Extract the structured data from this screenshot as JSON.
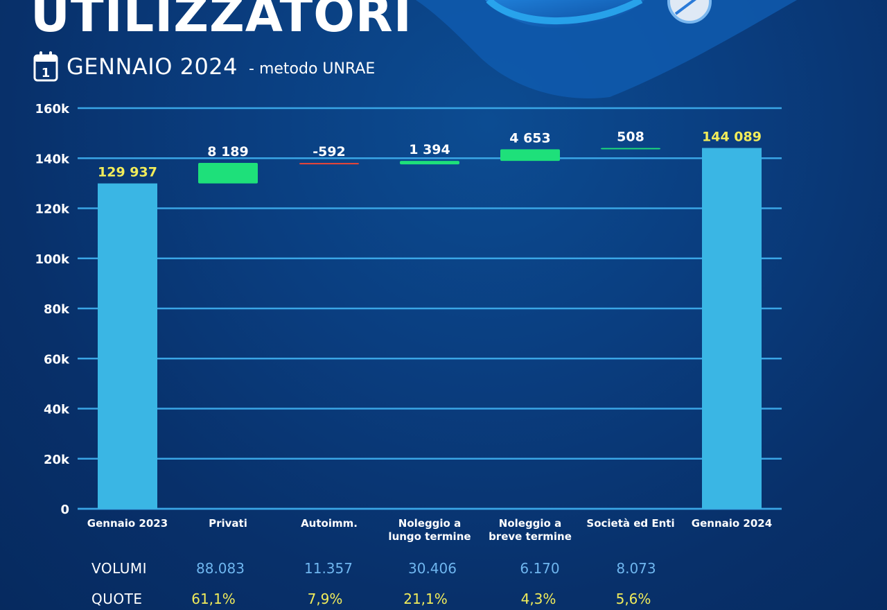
{
  "header": {
    "title": "UTILIZZATORI",
    "subtitle": "GENNAIO 2024",
    "method": "- metodo UNRAE",
    "calendar_day": "1"
  },
  "colors": {
    "background": "#0a3a7a",
    "start_end_bar": "#3ab6e4",
    "increase_bar": "#1ee07a",
    "decrease_bar": "#e0453a",
    "gridline": "#3aa6e6",
    "total_label": "#f1ec5a",
    "volume_text": "#6fb6ef",
    "share_text": "#f1ec5a"
  },
  "chart_data": {
    "type": "bar",
    "subtype": "waterfall",
    "categories": [
      "Gennaio 2023",
      "Privati",
      "Autoimm.",
      "Noleggio a lungo termine",
      "Noleggio a breve termine",
      "Società ed Enti",
      "Gennaio 2024"
    ],
    "category_lines": [
      [
        "Gennaio 2023"
      ],
      [
        "Privati"
      ],
      [
        "Autoimm."
      ],
      [
        "Noleggio a",
        "lungo termine"
      ],
      [
        "Noleggio a",
        "breve termine"
      ],
      [
        "Società ed Enti"
      ],
      [
        "Gennaio 2024"
      ]
    ],
    "values": [
      129937,
      8189,
      -592,
      1394,
      4653,
      508,
      144089
    ],
    "kinds": [
      "total",
      "delta",
      "delta",
      "delta",
      "delta",
      "delta",
      "total"
    ],
    "data_labels": [
      "129 937",
      "8 189",
      "-592",
      "1 394",
      "4 653",
      "508",
      "144 089"
    ],
    "ylim": [
      0,
      160000
    ],
    "yticks": [
      0,
      20000,
      40000,
      60000,
      80000,
      100000,
      120000,
      140000,
      160000
    ],
    "ytick_labels": [
      "0",
      "20k",
      "40k",
      "60k",
      "80k",
      "100k",
      "120k",
      "140k",
      "160k"
    ],
    "grid": true,
    "legend": "none"
  },
  "table": {
    "volumes_label": "VOLUMI",
    "shares_label": "QUOTE",
    "volumes": [
      "88.083",
      "11.357",
      "30.406",
      "6.170",
      "8.073"
    ],
    "shares": [
      "61,1%",
      "7,9%",
      "21,1%",
      "4,3%",
      "5,6%"
    ]
  }
}
